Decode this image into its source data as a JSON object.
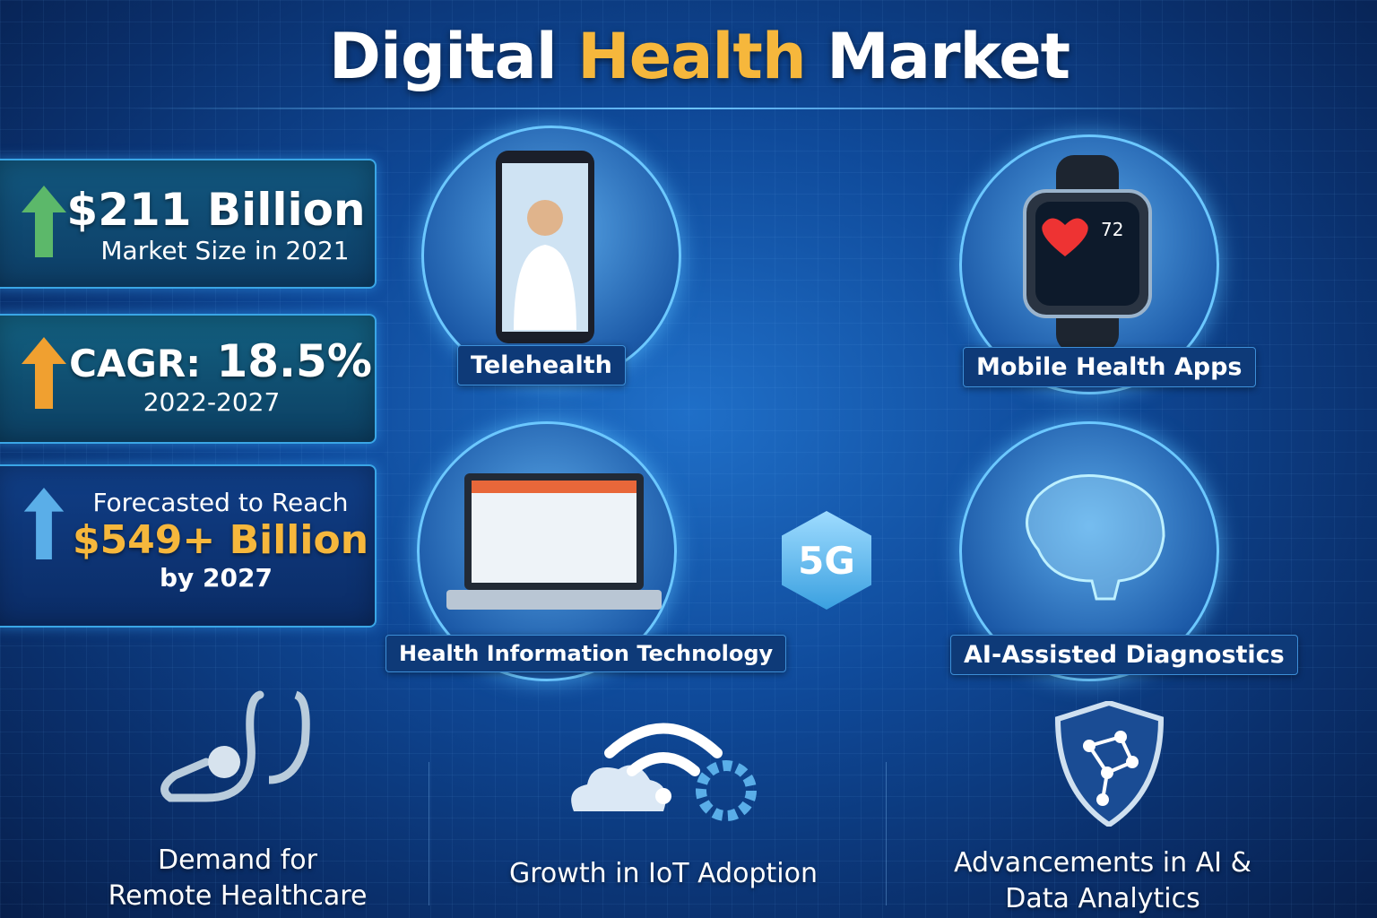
{
  "title": {
    "part1": "Digital",
    "highlight": "Health",
    "part2": "Market"
  },
  "colors": {
    "highlight": "#f6b73c",
    "green_arrow": "#5cb86a",
    "orange_arrow": "#f0a030",
    "blue_arrow": "#5aaee8"
  },
  "stats": [
    {
      "value": "$211 Billion",
      "label": "Market Size in 2021",
      "icon": "green-up-arrow-icon"
    },
    {
      "prefix": "CAGR:",
      "value": "18.5%",
      "label": "2022-2027",
      "icon": "orange-up-arrow-icon"
    },
    {
      "intro": "Forecasted to Reach",
      "value": "$549+ Billion",
      "label": "by 2027",
      "icon": "blue-up-arrow-icon"
    }
  ],
  "segments": [
    {
      "label": "Telehealth",
      "icon": "smartphone-doctor-icon"
    },
    {
      "label": "Mobile Health Apps",
      "icon": "smartwatch-heart-icon",
      "reading": "72"
    },
    {
      "label": "Health Information Technology",
      "icon": "laptop-record-icon"
    },
    {
      "label": "AI-Assisted Diagnostics",
      "icon": "brain-icon"
    }
  ],
  "center_badge": "5G",
  "drivers": [
    {
      "line1": "Demand for",
      "line2": "Remote Healthcare",
      "icon": "stethoscope-icon"
    },
    {
      "line1": "Growth in IoT Adoption",
      "line2": "",
      "icon": "cloud-wifi-gear-icon"
    },
    {
      "line1": "Advancements in AI &",
      "line2": "Data Analytics",
      "icon": "shield-network-icon"
    }
  ]
}
